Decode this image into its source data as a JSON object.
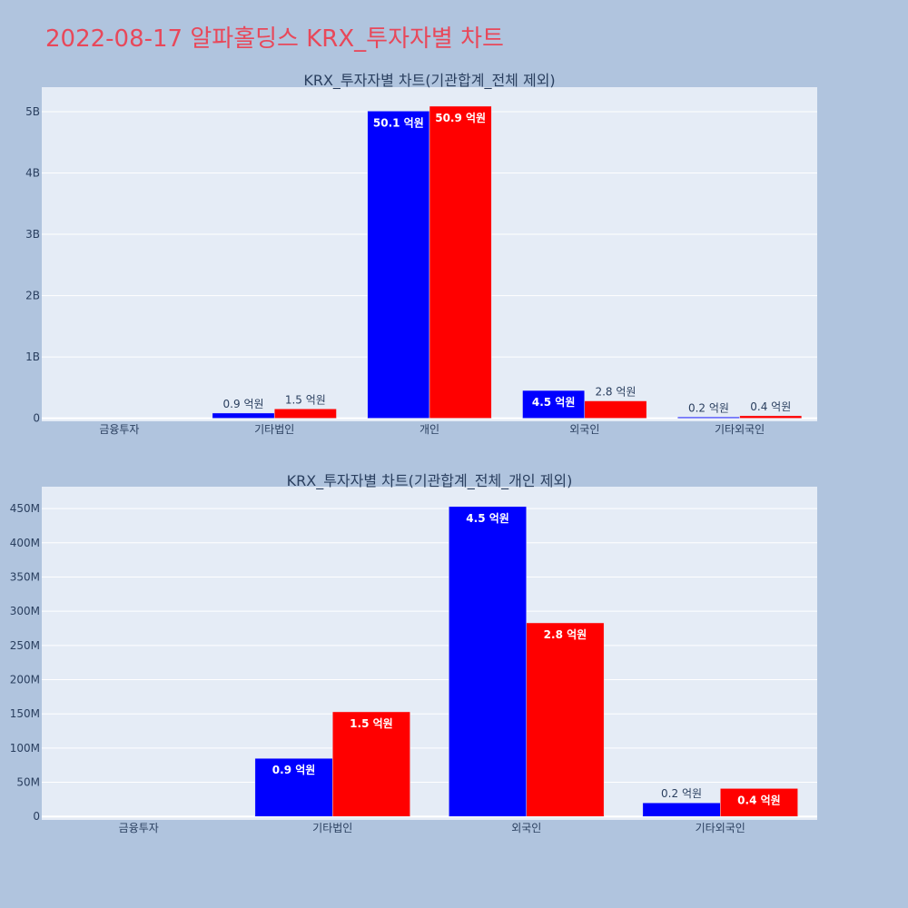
{
  "page": {
    "title": "2022-08-17 알파홀딩스 KRX_투자자별 차트",
    "background": "#b0c4de",
    "title_color": "#e8485a"
  },
  "chart_data": [
    {
      "type": "bar",
      "title": "KRX_투자자별 차트(기관합계_전체 제외)",
      "categories": [
        "금융투자",
        "기타법인",
        "개인",
        "외국인",
        "기타외국인"
      ],
      "series": [
        {
          "color": "#0000ff",
          "values": [
            0,
            85000000,
            5010000000,
            453000000,
            20000000
          ],
          "labels": [
            "",
            "0.9 억원",
            "50.1 억원",
            "4.5 억원",
            "0.2 억원"
          ]
        },
        {
          "color": "#ff0000",
          "values": [
            0,
            153000000,
            5090000000,
            283000000,
            41000000
          ],
          "labels": [
            "",
            "1.5 억원",
            "50.9 억원",
            "2.8 억원",
            "0.4 억원"
          ]
        }
      ],
      "ylim": [
        -50000000,
        5400000000
      ],
      "yticks": [
        0,
        1000000000,
        2000000000,
        3000000000,
        4000000000,
        5000000000
      ],
      "ytick_labels": [
        "0",
        "1B",
        "2B",
        "3B",
        "4B",
        "5B"
      ],
      "plot_bg": "#e5ecf6",
      "grid": true
    },
    {
      "type": "bar",
      "title": "KRX_투자자별 차트(기관합계_전체_개인 제외)",
      "categories": [
        "금융투자",
        "기타법인",
        "외국인",
        "기타외국인"
      ],
      "series": [
        {
          "color": "#0000ff",
          "values": [
            0,
            85000000,
            453000000,
            20000000
          ],
          "labels": [
            "",
            "0.9 억원",
            "4.5 억원",
            "0.2 억원"
          ]
        },
        {
          "color": "#ff0000",
          "values": [
            0,
            153000000,
            283000000,
            41000000
          ],
          "labels": [
            "",
            "1.5 억원",
            "2.8 억원",
            "0.4 억원"
          ]
        }
      ],
      "ylim": [
        -5000000,
        482000000
      ],
      "yticks": [
        0,
        50000000,
        100000000,
        150000000,
        200000000,
        250000000,
        300000000,
        350000000,
        400000000,
        450000000
      ],
      "ytick_labels": [
        "0",
        "50M",
        "100M",
        "150M",
        "200M",
        "250M",
        "300M",
        "350M",
        "400M",
        "450M"
      ],
      "plot_bg": "#e5ecf6",
      "grid": true
    }
  ]
}
